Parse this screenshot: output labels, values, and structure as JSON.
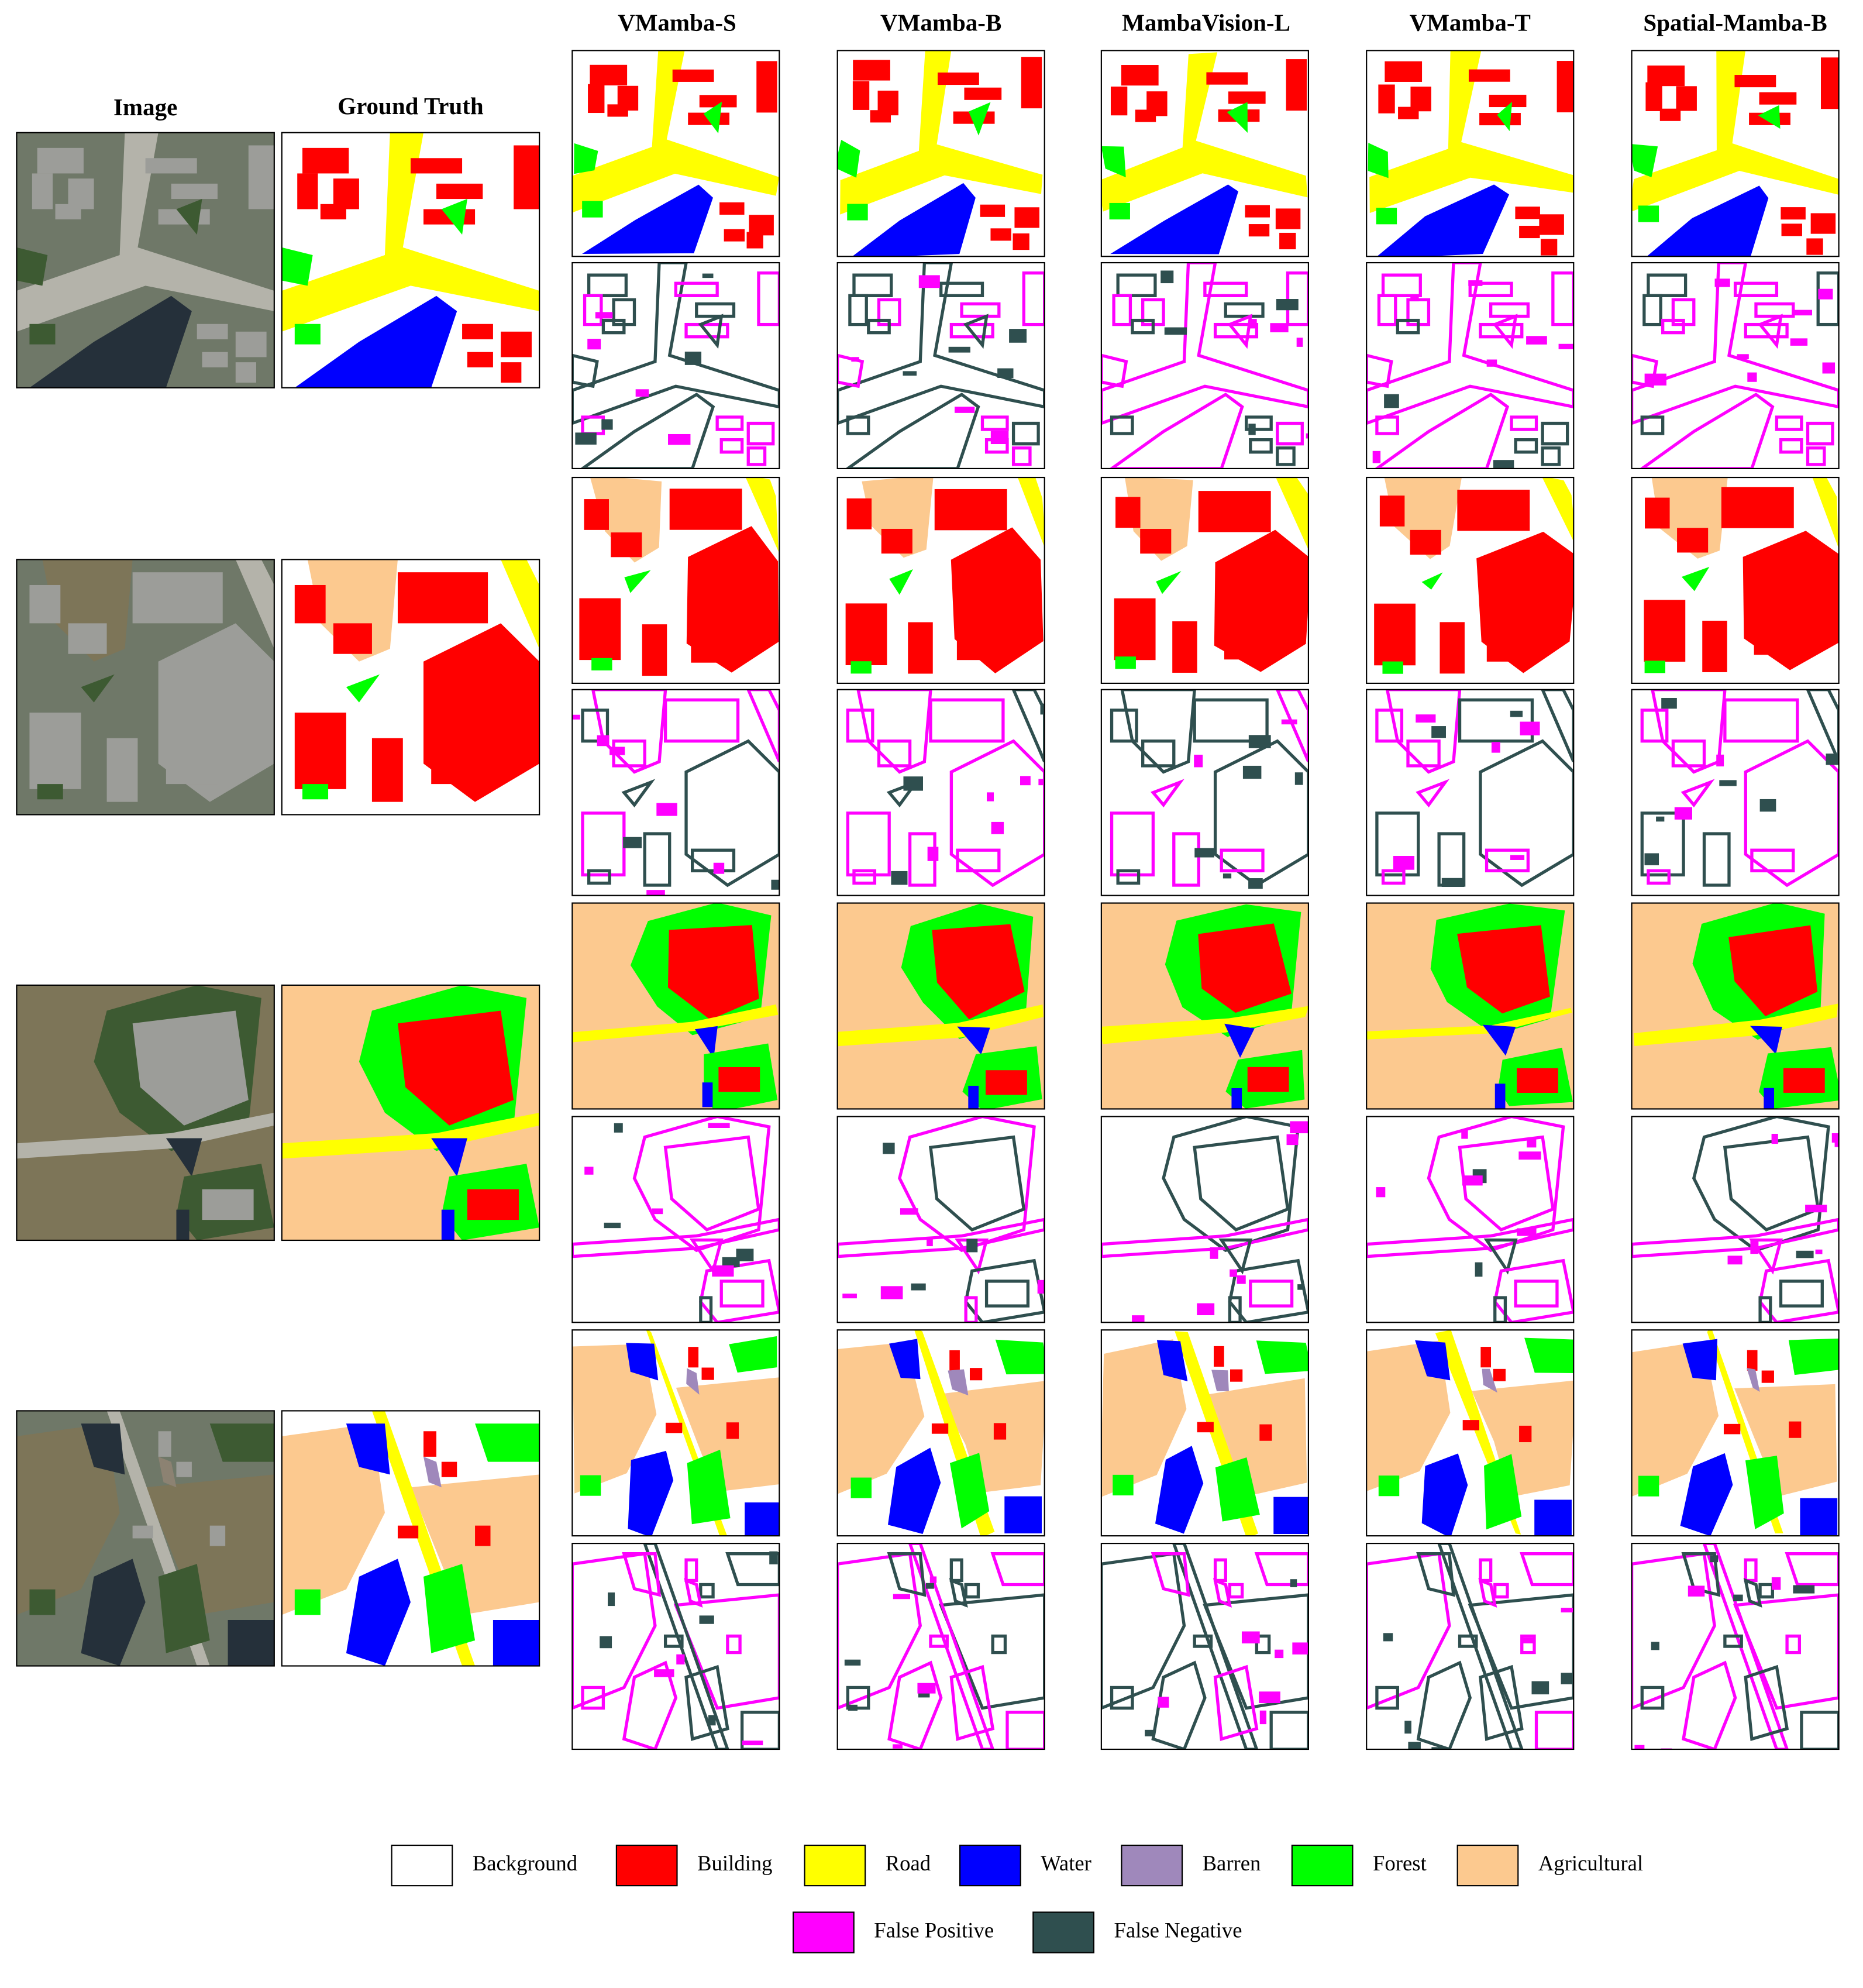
{
  "header": {
    "image": "Image",
    "ground_truth": "Ground Truth",
    "models": [
      "VMamba-S",
      "VMamba-B",
      "MambaVision-L",
      "VMamba-T",
      "Spatial-Mamba-B"
    ]
  },
  "legend": [
    {
      "label": "Background",
      "color": "#ffffff"
    },
    {
      "label": "Building",
      "color": "#ff0000"
    },
    {
      "label": "Road",
      "color": "#ffff00"
    },
    {
      "label": "Water",
      "color": "#0000ff"
    },
    {
      "label": "Barren",
      "color": "#9f88bb"
    },
    {
      "label": "Forest",
      "color": "#00ff00"
    },
    {
      "label": "Agricultural",
      "color": "#fcc98f"
    },
    {
      "label": "False Positive",
      "color": "#ff00ff"
    },
    {
      "label": "False Negative",
      "color": "#2f4f4f"
    }
  ]
}
